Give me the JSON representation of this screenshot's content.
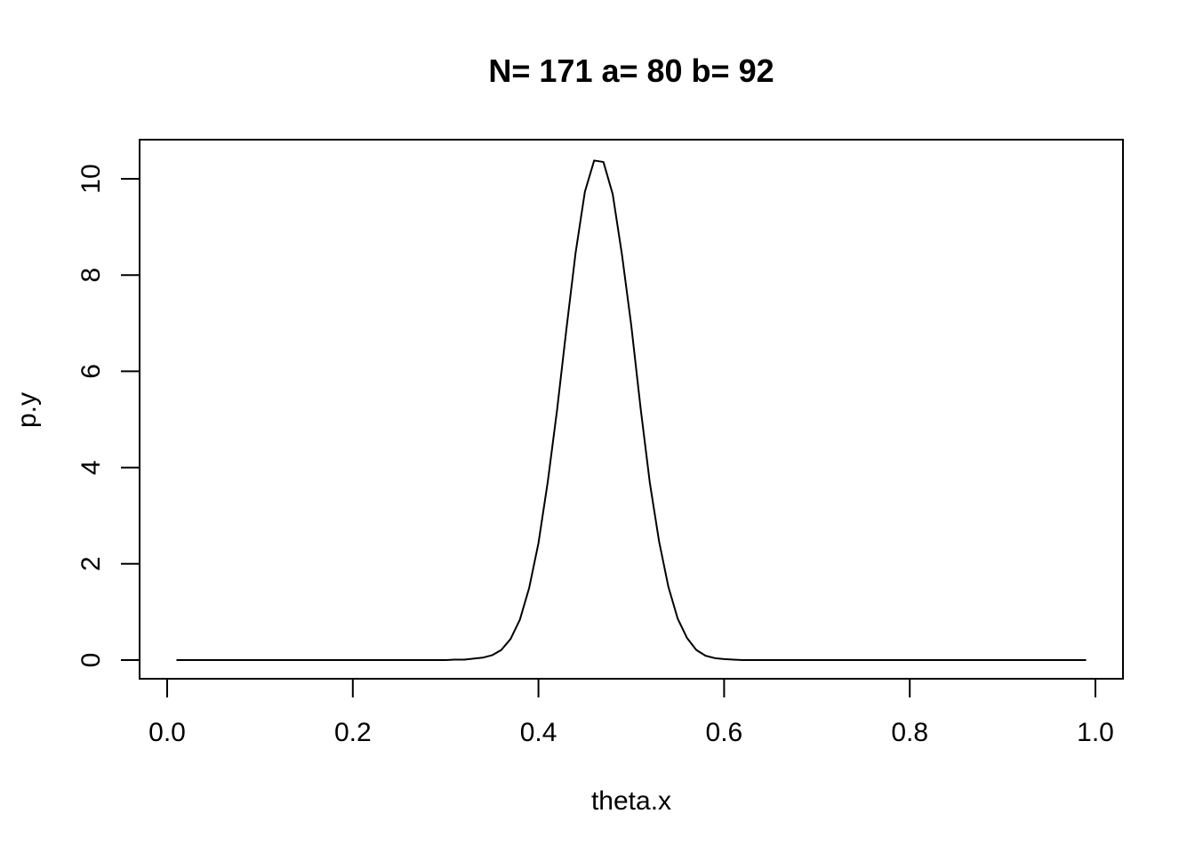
{
  "chart_data": {
    "type": "line",
    "title": "N= 171 a= 80 b= 92",
    "xlabel": "theta.x",
    "ylabel": "p.y",
    "xlim": [
      0.0,
      1.0
    ],
    "ylim": [
      -0.4,
      10.8
    ],
    "xticks": [
      0.0,
      0.2,
      0.4,
      0.6,
      0.8,
      1.0
    ],
    "xtick_labels": [
      "0.0",
      "0.2",
      "0.4",
      "0.6",
      "0.8",
      "1.0"
    ],
    "yticks": [
      0,
      2,
      4,
      6,
      8,
      10
    ],
    "ytick_labels": [
      "0",
      "2",
      "4",
      "6",
      "8",
      "10"
    ],
    "grid": false,
    "series": [
      {
        "x": [
          0.01,
          0.1,
          0.2,
          0.3,
          0.31,
          0.32,
          0.33,
          0.34,
          0.35,
          0.36,
          0.37,
          0.38,
          0.39,
          0.4,
          0.41,
          0.42,
          0.43,
          0.44,
          0.45,
          0.46,
          0.47,
          0.48,
          0.49,
          0.5,
          0.51,
          0.52,
          0.53,
          0.54,
          0.55,
          0.56,
          0.57,
          0.58,
          0.59,
          0.6,
          0.61,
          0.62,
          0.63,
          0.7,
          0.8,
          0.9,
          0.99
        ],
        "y": [
          0,
          0,
          0,
          0,
          0.01,
          0.01,
          0.03,
          0.05,
          0.1,
          0.21,
          0.44,
          0.84,
          1.5,
          2.43,
          3.7,
          5.19,
          6.86,
          8.46,
          9.73,
          10.38,
          10.35,
          9.68,
          8.42,
          6.95,
          5.24,
          3.68,
          2.46,
          1.52,
          0.86,
          0.46,
          0.21,
          0.09,
          0.04,
          0.02,
          0.01,
          0,
          0,
          0,
          0,
          0,
          0
        ]
      }
    ]
  }
}
